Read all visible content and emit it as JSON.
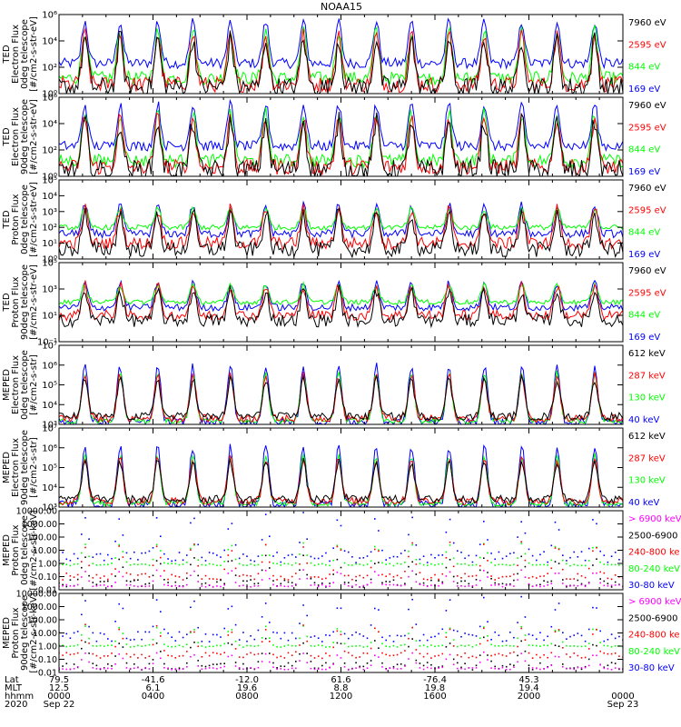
{
  "title": "NOAA15",
  "colors": {
    "blue": "#0000ff",
    "red": "#ff0000",
    "green": "#00ff00",
    "black": "#000000",
    "magenta": "#ff00ff",
    "axis": "#000000"
  },
  "chart_data": [
    {
      "type": "line",
      "scale": "log",
      "ylim": [
        1,
        1000000
      ],
      "ylabel": [
        "TED",
        "Electron Flux",
        "0deg telescope",
        "[#/cm2-s-str-eV]"
      ],
      "yticks": [
        {
          "v": 1,
          "label": "10⁰"
        },
        {
          "v": 100,
          "label": "10²"
        },
        {
          "v": 10000,
          "label": "10⁴"
        },
        {
          "v": 1000000,
          "label": "10⁶"
        }
      ],
      "series": [
        {
          "name": "7960 eV",
          "color": "#000000",
          "base": 3,
          "peak": 15000,
          "noise": 0.6
        },
        {
          "name": "2595 eV",
          "color": "#ff0000",
          "base": 5,
          "peak": 30000,
          "noise": 0.45
        },
        {
          "name": "844 eV",
          "color": "#00ff00",
          "base": 15,
          "peak": 60000,
          "noise": 0.4
        },
        {
          "name": "169 eV",
          "color": "#0000ff",
          "base": 200,
          "peak": 300000,
          "noise": 0.35
        }
      ]
    },
    {
      "type": "line",
      "scale": "log",
      "ylim": [
        1,
        1000000
      ],
      "ylabel": [
        "TED",
        "Electron Flux",
        "90deg telescope",
        "[#/cm2-s-str-eV]"
      ],
      "yticks": [
        {
          "v": 1,
          "label": "10⁰"
        },
        {
          "v": 100,
          "label": "10²"
        },
        {
          "v": 10000,
          "label": "10⁴"
        },
        {
          "v": 1000000,
          "label": "10⁶"
        }
      ],
      "series": [
        {
          "name": "7960 eV",
          "color": "#000000",
          "base": 3,
          "peak": 15000,
          "noise": 0.6
        },
        {
          "name": "2595 eV",
          "color": "#ff0000",
          "base": 5,
          "peak": 30000,
          "noise": 0.45
        },
        {
          "name": "844 eV",
          "color": "#00ff00",
          "base": 15,
          "peak": 60000,
          "noise": 0.4
        },
        {
          "name": "169 eV",
          "color": "#0000ff",
          "base": 200,
          "peak": 300000,
          "noise": 0.35
        }
      ]
    },
    {
      "type": "line",
      "scale": "log",
      "ylim": [
        1,
        100000
      ],
      "ylabel": [
        "TED",
        "Proton Flux",
        "0deg telescope",
        "[#/cm2-s-str-eV]"
      ],
      "yticks": [
        {
          "v": 1,
          "label": "10⁰"
        },
        {
          "v": 10,
          "label": "10¹"
        },
        {
          "v": 100,
          "label": "10²"
        },
        {
          "v": 1000,
          "label": "10³"
        },
        {
          "v": 10000,
          "label": "10⁴"
        },
        {
          "v": 100000,
          "label": "10⁵"
        }
      ],
      "series": [
        {
          "name": "7960 eV",
          "color": "#000000",
          "base": 4,
          "peak": 800,
          "noise": 0.6
        },
        {
          "name": "2595 eV",
          "color": "#ff0000",
          "base": 10,
          "peak": 1500,
          "noise": 0.5
        },
        {
          "name": "844 eV",
          "color": "#00ff00",
          "base": 100,
          "peak": 1500,
          "noise": 0.4
        },
        {
          "name": "169 eV",
          "color": "#0000ff",
          "base": 40,
          "peak": 2500,
          "noise": 0.4
        }
      ]
    },
    {
      "type": "line",
      "scale": "log",
      "ylim": [
        0.1,
        100000
      ],
      "ylabel": [
        "TED",
        "Proton Flux",
        "90deg telescope",
        "[#/cm2-s-str-eV]"
      ],
      "yticks": [
        {
          "v": 0.1,
          "label": "10⁻¹"
        },
        {
          "v": 10,
          "label": "10¹"
        },
        {
          "v": 1000,
          "label": "10³"
        },
        {
          "v": 100000,
          "label": "10⁵"
        }
      ],
      "series": [
        {
          "name": "7960 eV",
          "color": "#000000",
          "base": 4,
          "peak": 800,
          "noise": 0.6
        },
        {
          "name": "2595 eV",
          "color": "#ff0000",
          "base": 10,
          "peak": 2000,
          "noise": 0.5
        },
        {
          "name": "844 eV",
          "color": "#00ff00",
          "base": 100,
          "peak": 2000,
          "noise": 0.4
        },
        {
          "name": "169 eV",
          "color": "#0000ff",
          "base": 40,
          "peak": 3000,
          "noise": 0.4
        }
      ]
    },
    {
      "type": "line",
      "scale": "log",
      "ylim": [
        1000,
        10000000
      ],
      "ylabel": [
        "MEPED",
        "Electron Flux",
        "0deg telescope",
        "[#/cm2-s-str]"
      ],
      "yticks": [
        {
          "v": 1000,
          "label": "10³"
        },
        {
          "v": 10000,
          "label": "10⁴"
        },
        {
          "v": 100000,
          "label": "10⁵"
        },
        {
          "v": 1000000,
          "label": "10⁶"
        },
        {
          "v": 10000000,
          "label": "10⁷"
        }
      ],
      "series": [
        {
          "name": "612 keV",
          "color": "#000000",
          "base": 2500,
          "peak": 200000,
          "noise": 0.3
        },
        {
          "name": "287 keV",
          "color": "#ff0000",
          "base": 2000,
          "peak": 300000,
          "noise": 0.25
        },
        {
          "name": "130 keV",
          "color": "#00ff00",
          "base": 1500,
          "peak": 400000,
          "noise": 0.15
        },
        {
          "name": "40 keV",
          "color": "#0000ff",
          "base": 1300,
          "peak": 900000,
          "noise": 0.2
        }
      ]
    },
    {
      "type": "line",
      "scale": "log",
      "ylim": [
        1000,
        10000000
      ],
      "ylabel": [
        "MEPED",
        "Electron Flux",
        "90deg telescope",
        "[#/cm2-s-str]"
      ],
      "yticks": [
        {
          "v": 1000,
          "label": "10³"
        },
        {
          "v": 10000,
          "label": "10⁴"
        },
        {
          "v": 100000,
          "label": "10⁵"
        },
        {
          "v": 1000000,
          "label": "10⁶"
        },
        {
          "v": 10000000,
          "label": "10⁷"
        }
      ],
      "series": [
        {
          "name": "612 keV",
          "color": "#000000",
          "base": 2500,
          "peak": 200000,
          "noise": 0.3
        },
        {
          "name": "287 keV",
          "color": "#ff0000",
          "base": 2000,
          "peak": 300000,
          "noise": 0.25
        },
        {
          "name": "130 keV",
          "color": "#00ff00",
          "base": 1500,
          "peak": 400000,
          "noise": 0.15
        },
        {
          "name": "40 keV",
          "color": "#0000ff",
          "base": 1300,
          "peak": 1200000,
          "noise": 0.2
        }
      ]
    },
    {
      "type": "scatter",
      "scale": "log",
      "ylim": [
        0.01,
        10000
      ],
      "ylabel": [
        "MEPED",
        "Proton Flux",
        "0deg telescope",
        "[#/cm2-s-str-keV]"
      ],
      "yticks": [
        {
          "v": 0.01,
          "label": "0.01"
        },
        {
          "v": 0.1,
          "label": "0.10"
        },
        {
          "v": 1,
          "label": "1.00"
        },
        {
          "v": 10,
          "label": "10.00"
        },
        {
          "v": 100,
          "label": "100.00"
        },
        {
          "v": 1000,
          "label": "1000.00"
        },
        {
          "v": 10000,
          "label": "10000.00"
        }
      ],
      "series": [
        {
          "name": "> 6900 keV",
          "color": "#ff00ff",
          "base": 0.02,
          "peak": 0.3,
          "noise": 0.2
        },
        {
          "name": "2500-6900",
          "color": "#000000",
          "base": 0.03,
          "peak": 3,
          "noise": 0.4
        },
        {
          "name": "240-800 ke",
          "color": "#ff0000",
          "base": 0.1,
          "peak": 30,
          "noise": 0.3
        },
        {
          "name": "80-240 keV",
          "color": "#00ff00",
          "base": 0.8,
          "peak": 30,
          "noise": 0.15
        },
        {
          "name": "30-80 keV",
          "color": "#0000ff",
          "base": 3,
          "peak": 3000,
          "noise": 0.4
        }
      ]
    },
    {
      "type": "scatter",
      "scale": "log",
      "ylim": [
        0.01,
        10000
      ],
      "ylabel": [
        "MEPED",
        "Proton Flux",
        "90deg telescope",
        "[#/cm2-s-str-keV]"
      ],
      "yticks": [
        {
          "v": 0.01,
          "label": "0.01"
        },
        {
          "v": 0.1,
          "label": "0.10"
        },
        {
          "v": 1,
          "label": "1.00"
        },
        {
          "v": 10,
          "label": "10.00"
        },
        {
          "v": 100,
          "label": "100.00"
        },
        {
          "v": 1000,
          "label": "1000.00"
        },
        {
          "v": 10000,
          "label": "10000.00"
        }
      ],
      "series": [
        {
          "name": "> 6900 keV",
          "color": "#ff00ff",
          "base": 0.02,
          "peak": 0.3,
          "noise": 0.2
        },
        {
          "name": "2500-6900",
          "color": "#000000",
          "base": 0.03,
          "peak": 3,
          "noise": 0.4
        },
        {
          "name": "240-800 ke",
          "color": "#ff0000",
          "base": 0.2,
          "peak": 30,
          "noise": 0.3
        },
        {
          "name": "80-240 keV",
          "color": "#00ff00",
          "base": 1.0,
          "peak": 30,
          "noise": 0.15
        },
        {
          "name": "30-80 keV",
          "color": "#0000ff",
          "base": 5,
          "peak": 3000,
          "noise": 0.4
        }
      ]
    }
  ],
  "x_axis": {
    "row_labels": [
      "Lat",
      "MLT",
      "hhmm",
      "2020"
    ],
    "ticks": [
      {
        "hour": 0,
        "lat": "79.5",
        "mlt": "12.5",
        "hhmm": "0000",
        "date": "Sep 22"
      },
      {
        "hour": 4,
        "lat": "-41.6",
        "mlt": "6.1",
        "hhmm": "0400",
        "date": ""
      },
      {
        "hour": 8,
        "lat": "-12.0",
        "mlt": "19.6",
        "hhmm": "0800",
        "date": ""
      },
      {
        "hour": 12,
        "lat": "61.6",
        "mlt": "8.8",
        "hhmm": "1200",
        "date": ""
      },
      {
        "hour": 16,
        "lat": "-76.4",
        "mlt": "19.8",
        "hhmm": "1600",
        "date": ""
      },
      {
        "hour": 20,
        "lat": "45.3",
        "mlt": "19.4",
        "hhmm": "2000",
        "date": ""
      },
      {
        "hour": 24,
        "lat": "",
        "mlt": "",
        "hhmm": "0000",
        "date": "Sep 23"
      }
    ],
    "xlim_hours": [
      0,
      24
    ],
    "peak_hours": [
      1.1,
      2.6,
      4.2,
      5.7,
      7.3,
      8.8,
      10.4,
      11.9,
      13.5,
      15.0,
      16.6,
      18.1,
      19.7,
      21.2,
      22.8
    ]
  }
}
